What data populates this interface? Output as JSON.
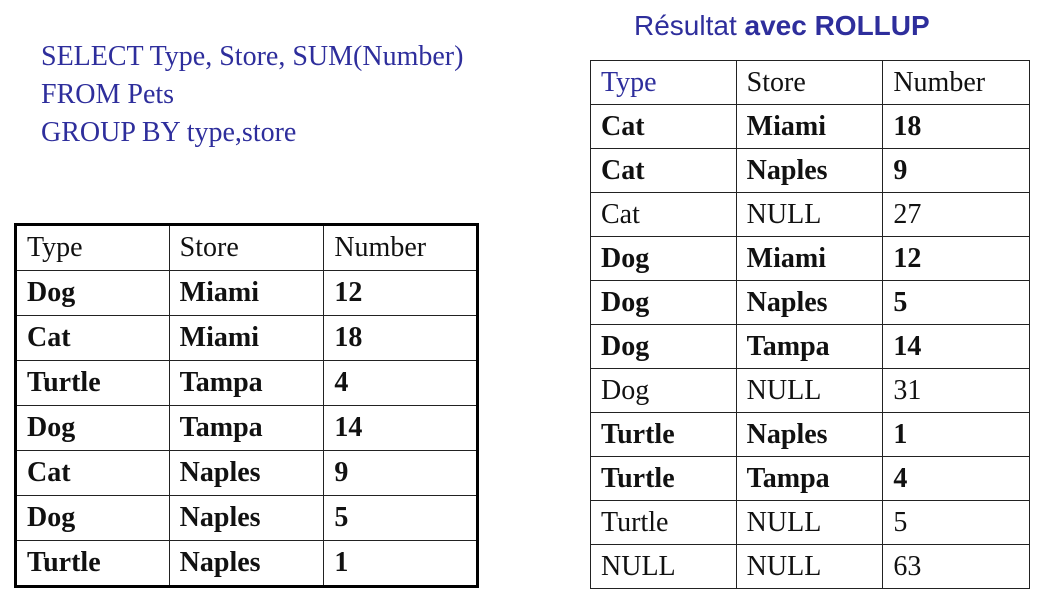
{
  "query": {
    "line1": "SELECT Type, Store, SUM(Number)",
    "line2": "FROM Pets",
    "line3": "GROUP BY type,store"
  },
  "result_title": {
    "prefix": "Résultat",
    "suffix": "avec ROLLUP"
  },
  "colors": {
    "accent_blue": "#2e2e9c",
    "text": "#111111",
    "border": "#222222"
  },
  "left_table": {
    "headers": [
      "Type",
      "Store",
      "Number"
    ],
    "rows": [
      [
        "Dog",
        "Miami",
        "12"
      ],
      [
        "Cat",
        "Miami",
        "18"
      ],
      [
        "Turtle",
        "Tampa",
        "4"
      ],
      [
        "Dog",
        "Tampa",
        "14"
      ],
      [
        "Cat",
        "Naples",
        "9"
      ],
      [
        "Dog",
        "Naples",
        "5"
      ],
      [
        "Turtle",
        "Naples",
        "1"
      ]
    ]
  },
  "right_table": {
    "headers": [
      "Type",
      "Store",
      "Number"
    ],
    "rows": [
      {
        "cells": [
          "Cat",
          "Miami",
          "18"
        ],
        "bold": true
      },
      {
        "cells": [
          "Cat",
          "Naples",
          "9"
        ],
        "bold": true
      },
      {
        "cells": [
          "Cat",
          "NULL",
          "27"
        ],
        "bold": false
      },
      {
        "cells": [
          "Dog",
          "Miami",
          "12"
        ],
        "bold": true
      },
      {
        "cells": [
          "Dog",
          "Naples",
          "5"
        ],
        "bold": true
      },
      {
        "cells": [
          "Dog",
          "Tampa",
          "14"
        ],
        "bold": true
      },
      {
        "cells": [
          "Dog",
          "NULL",
          "31"
        ],
        "bold": false
      },
      {
        "cells": [
          "Turtle",
          "Naples",
          "1"
        ],
        "bold": true
      },
      {
        "cells": [
          "Turtle",
          "Tampa",
          "4"
        ],
        "bold": true
      },
      {
        "cells": [
          "Turtle",
          "NULL",
          "5"
        ],
        "bold": false
      },
      {
        "cells": [
          "NULL",
          "NULL",
          "63"
        ],
        "bold": false
      }
    ]
  }
}
